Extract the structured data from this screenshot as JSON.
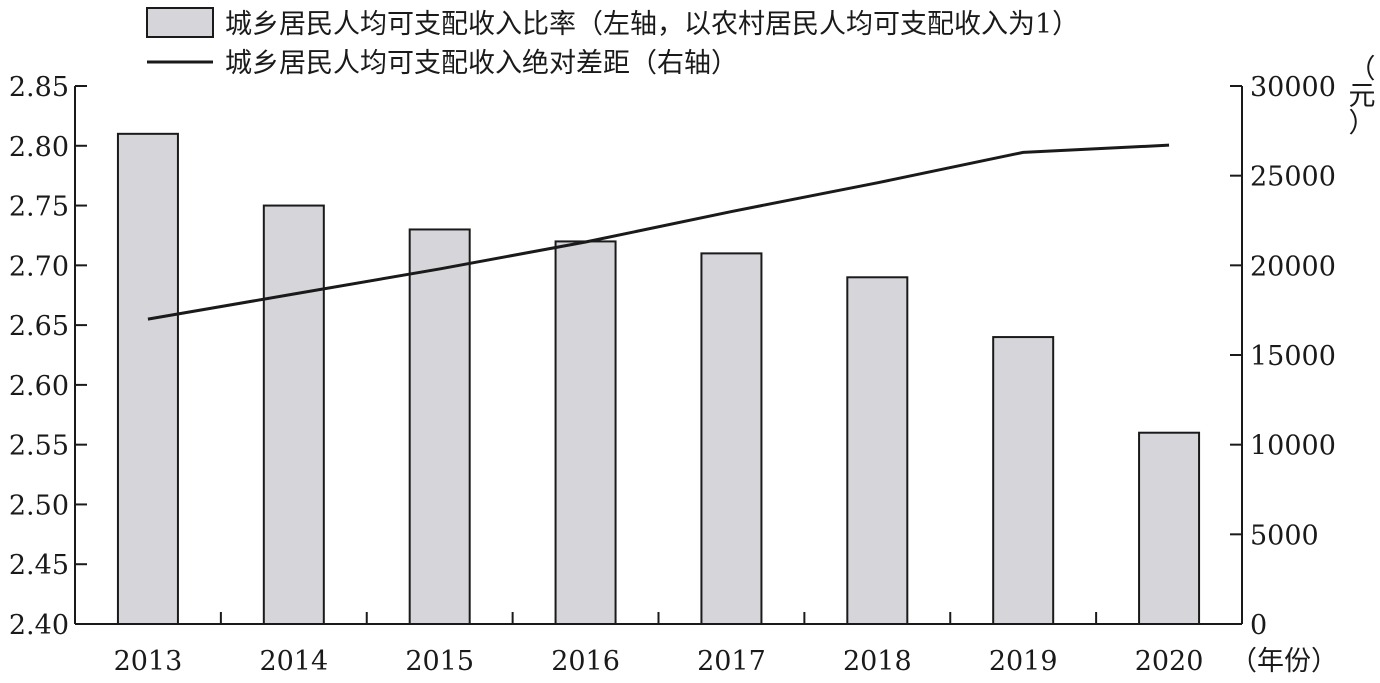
{
  "chart_data": {
    "type": "bar",
    "categories": [
      "2013",
      "2014",
      "2015",
      "2016",
      "2017",
      "2018",
      "2019",
      "2020"
    ],
    "series": [
      {
        "name": "城乡居民人均可支配收入比率（左轴，以农村居民人均可支配收入为1）",
        "type": "bar",
        "axis": "left",
        "values": [
          2.81,
          2.75,
          2.73,
          2.72,
          2.71,
          2.69,
          2.64,
          2.56
        ]
      },
      {
        "name": "城乡居民人均可支配收入绝对差距（右轴）",
        "type": "line",
        "axis": "right",
        "values": [
          17000,
          18400,
          19800,
          21300,
          23000,
          24600,
          26300,
          26700
        ]
      }
    ],
    "y_left": {
      "ylim": [
        2.4,
        2.85
      ],
      "ticks": [
        "2.85",
        "2.80",
        "2.75",
        "2.70",
        "2.65",
        "2.60",
        "2.55",
        "2.50",
        "2.45",
        "2.40"
      ]
    },
    "y_right": {
      "ylim": [
        0,
        30000
      ],
      "ticks": [
        "30000",
        "25000",
        "20000",
        "15000",
        "10000",
        "5000",
        "0"
      ],
      "unit": "（元）"
    },
    "xlabel": "（年份）",
    "colors": {
      "bar_fill": "#d6d6da",
      "bar_stroke": "#1a1a1a",
      "line": "#1a1a1a",
      "axis": "#1a1a1a"
    },
    "grid": false,
    "legend_position": "top-left"
  }
}
